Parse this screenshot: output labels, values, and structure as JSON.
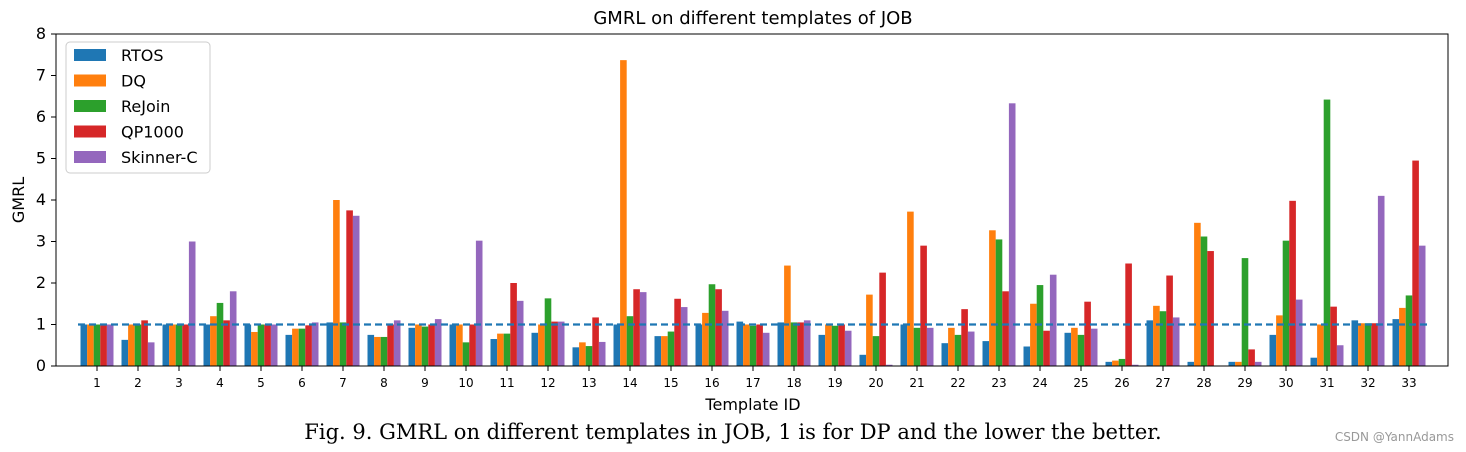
{
  "caption": "Fig. 9.  GMRL on different templates in JOB, 1 is for DP and the lower the better.",
  "watermark": "CSDN @YannAdams",
  "chart_data": {
    "type": "bar",
    "title": "GMRL on different templates of JOB",
    "xlabel": "Template ID",
    "ylabel": "GMRL",
    "ylim": [
      0,
      8
    ],
    "yticks": [
      0,
      1,
      2,
      3,
      4,
      5,
      6,
      7,
      8
    ],
    "grid": false,
    "legend_position": "top-left",
    "reference_line": {
      "y": 1,
      "style": "dashed",
      "color": "#1f77b4"
    },
    "categories": [
      "1",
      "2",
      "3",
      "4",
      "5",
      "6",
      "7",
      "8",
      "9",
      "10",
      "11",
      "12",
      "13",
      "14",
      "15",
      "16",
      "17",
      "18",
      "19",
      "20",
      "21",
      "22",
      "23",
      "24",
      "25",
      "26",
      "27",
      "28",
      "29",
      "30",
      "31",
      "32",
      "33"
    ],
    "series": [
      {
        "name": "RTOS",
        "color": "#1f77b4",
        "values": [
          1.0,
          0.63,
          1.0,
          1.0,
          1.0,
          0.75,
          1.05,
          0.75,
          0.92,
          1.0,
          0.65,
          0.8,
          0.45,
          1.0,
          0.72,
          1.0,
          1.07,
          1.05,
          0.75,
          0.27,
          1.0,
          0.55,
          0.6,
          0.47,
          0.8,
          0.1,
          1.1,
          0.1,
          0.1,
          0.75,
          0.2,
          1.1,
          1.13
        ]
      },
      {
        "name": "DQ",
        "color": "#ff7f0e",
        "values": [
          1.0,
          1.0,
          1.0,
          1.2,
          0.82,
          0.9,
          4.0,
          0.7,
          1.0,
          1.0,
          0.78,
          1.0,
          0.57,
          7.37,
          0.72,
          1.28,
          1.0,
          2.42,
          1.0,
          1.72,
          3.72,
          0.92,
          3.27,
          1.5,
          0.92,
          0.13,
          1.45,
          3.45,
          0.1,
          1.22,
          1.0,
          1.03,
          1.4
        ]
      },
      {
        "name": "ReJoin",
        "color": "#2ca02c",
        "values": [
          1.0,
          1.0,
          1.0,
          1.52,
          1.0,
          0.9,
          1.05,
          0.7,
          0.95,
          0.57,
          0.78,
          1.63,
          0.48,
          1.2,
          0.83,
          1.97,
          0.97,
          1.05,
          0.97,
          0.72,
          0.92,
          0.75,
          3.05,
          1.95,
          0.75,
          0.17,
          1.32,
          3.12,
          2.6,
          3.02,
          6.42,
          1.03,
          1.7
        ]
      },
      {
        "name": "QP1000",
        "color": "#d62728",
        "values": [
          1.0,
          1.1,
          1.0,
          1.1,
          1.0,
          0.98,
          3.75,
          1.0,
          1.0,
          1.0,
          2.0,
          1.07,
          1.17,
          1.85,
          1.62,
          1.85,
          1.0,
          1.05,
          1.0,
          2.25,
          2.9,
          1.37,
          1.8,
          0.85,
          1.55,
          2.47,
          2.18,
          2.77,
          0.4,
          3.98,
          1.43,
          1.03,
          4.95
        ]
      },
      {
        "name": "Skinner-C",
        "color": "#9467bd",
        "values": [
          1.0,
          0.57,
          3.0,
          1.8,
          1.0,
          1.05,
          3.62,
          1.1,
          1.13,
          3.02,
          1.57,
          1.07,
          0.58,
          1.78,
          1.42,
          1.33,
          0.8,
          1.1,
          0.85,
          0.03,
          0.92,
          0.83,
          6.33,
          2.2,
          0.9,
          0.03,
          1.17,
          0.0,
          0.1,
          1.6,
          0.5,
          4.1,
          2.9
        ]
      }
    ]
  }
}
